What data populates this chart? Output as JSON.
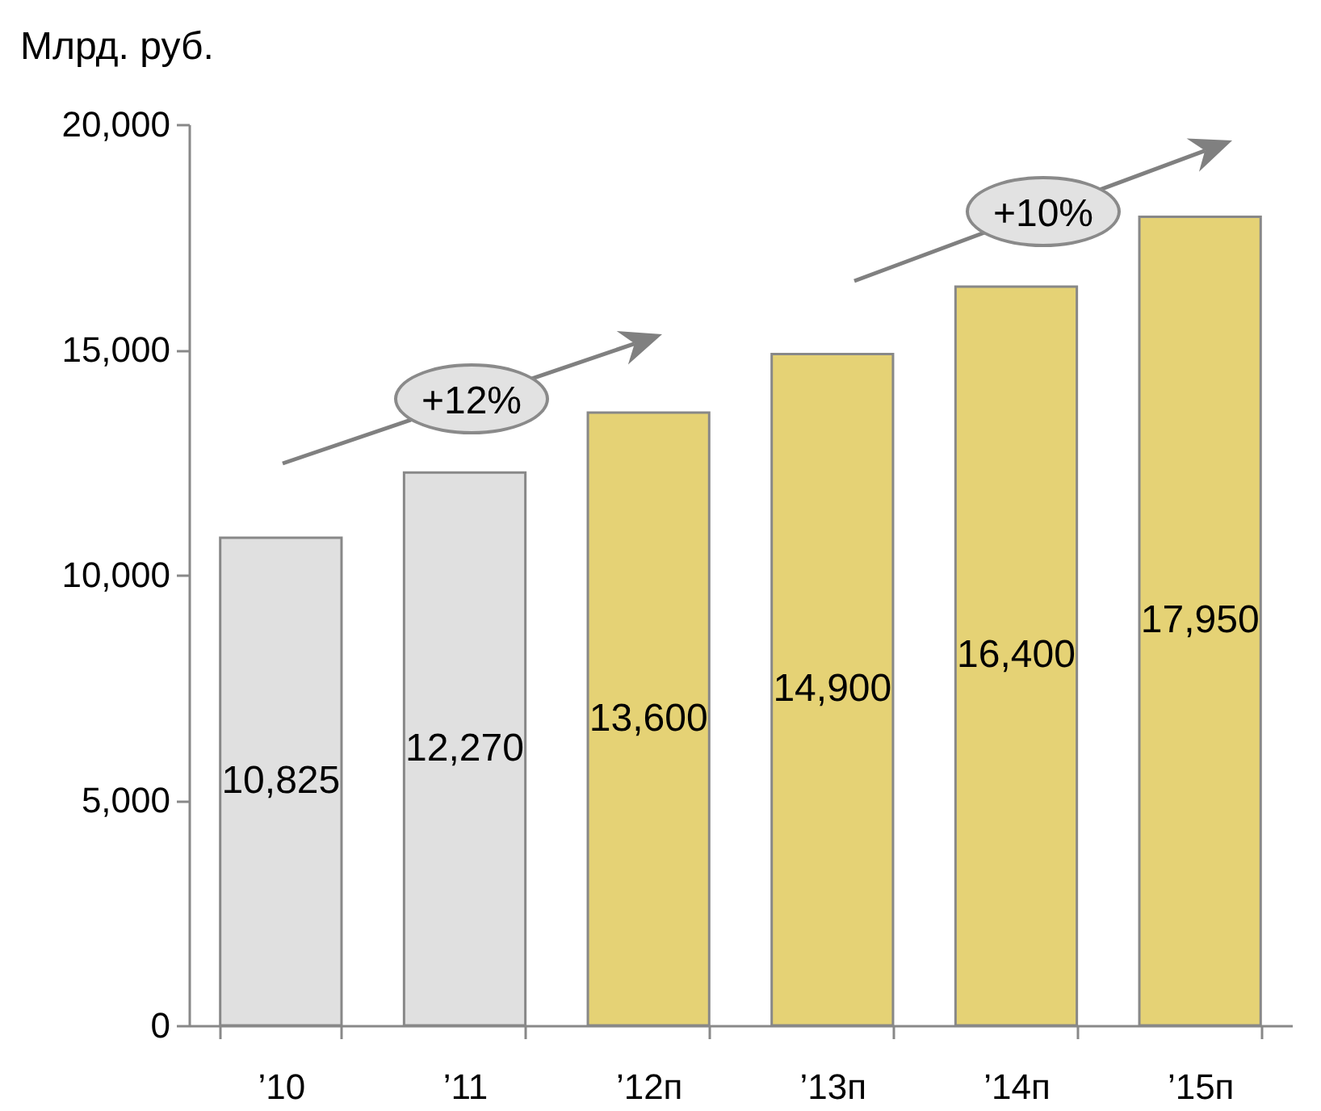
{
  "chart_data": {
    "type": "bar",
    "ylabel": "Млрд. руб.",
    "categories": [
      "’10",
      "’11",
      "’12п",
      "’13п",
      "’14п",
      "’15п"
    ],
    "values": [
      10825,
      12270,
      13600,
      14900,
      16400,
      17950
    ],
    "value_labels": [
      "10,825",
      "12,270",
      "13,600",
      "14,900",
      "16,400",
      "17,950"
    ],
    "colors": [
      "#e0e0e0",
      "#e0e0e0",
      "#e5d275",
      "#e5d275",
      "#e5d275",
      "#e5d275"
    ],
    "ylim": [
      0,
      20000
    ],
    "yticks": [
      0,
      {
        "value": 5000,
        "label": "5,000"
      },
      {
        "value": 10000,
        "label": "10,000"
      },
      {
        "value": 15000,
        "label": "15,000"
      },
      {
        "value": 20000,
        "label": "20,000"
      }
    ],
    "grid": false,
    "annotations": [
      "+12%",
      "+10%"
    ]
  }
}
